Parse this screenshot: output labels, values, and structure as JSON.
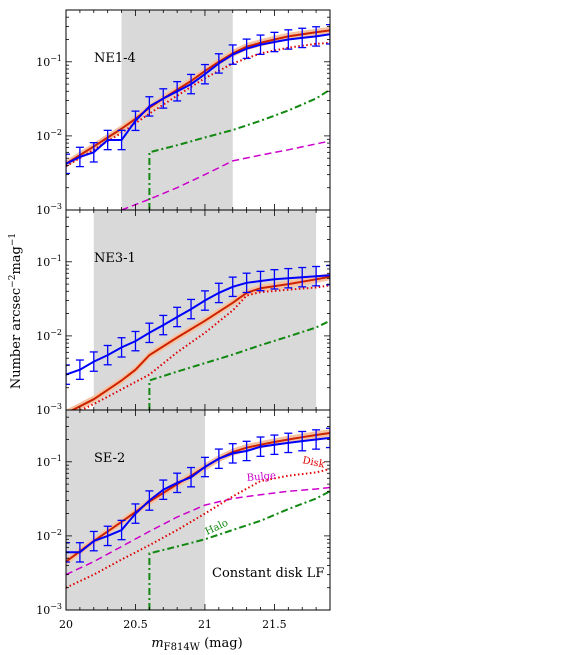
{
  "chart_data": {
    "type": "line",
    "xlabel": "m",
    "xlabel_sub": "F814W",
    "xlabel_unit": " (mag)",
    "ylabel": "Number arcsec",
    "ylabel_sup1": "−2",
    "ylabel_mid": "mag",
    "ylabel_sup2": "−1",
    "xlim": [
      20.0,
      21.9
    ],
    "ylim": [
      0.001,
      0.5
    ],
    "yscale": "log",
    "xticks": [
      {
        "v": 20,
        "label": "20"
      },
      {
        "v": 20.5,
        "label": "20.5"
      },
      {
        "v": 21,
        "label": "21"
      },
      {
        "v": 21.5,
        "label": "21.5"
      }
    ],
    "yticks": [
      {
        "v": 0.001,
        "b": "10",
        "e": "−3"
      },
      {
        "v": 0.01,
        "b": "10",
        "e": "−2"
      },
      {
        "v": 0.1,
        "b": "10",
        "e": "−1"
      }
    ],
    "colors": {
      "data": "#0000ff",
      "model": "#cc2200",
      "band": "#f6c3a2",
      "disk": "#e00000",
      "bulge": "#cc00cc",
      "halo": "#118811",
      "shade": "#d9d9d9"
    },
    "panels": [
      {
        "label": "NE1-4",
        "shade": [
          20.4,
          21.2
        ],
        "data": {
          "x": [
            20.0,
            20.1,
            20.2,
            20.3,
            20.4,
            20.5,
            20.6,
            20.7,
            20.8,
            20.9,
            21.0,
            21.1,
            21.2,
            21.3,
            21.4,
            21.5,
            21.6,
            21.7,
            21.8,
            21.9
          ],
          "y": [
            0.0042,
            0.0052,
            0.006,
            0.0088,
            0.0088,
            0.016,
            0.025,
            0.032,
            0.04,
            0.05,
            0.068,
            0.095,
            0.125,
            0.15,
            0.17,
            0.185,
            0.2,
            0.21,
            0.22,
            0.235
          ]
        },
        "model": {
          "x": [
            20.0,
            20.1,
            20.2,
            20.3,
            20.4,
            20.5,
            20.6,
            20.7,
            20.8,
            20.9,
            21.0,
            21.1,
            21.2,
            21.3,
            21.4,
            21.5,
            21.6,
            21.7,
            21.8,
            21.9
          ],
          "y": [
            0.0042,
            0.0055,
            0.0072,
            0.0095,
            0.0125,
            0.017,
            0.024,
            0.032,
            0.042,
            0.055,
            0.075,
            0.1,
            0.13,
            0.16,
            0.18,
            0.2,
            0.22,
            0.235,
            0.25,
            0.265
          ]
        },
        "disk": {
          "x": [
            20.0,
            20.2,
            20.4,
            20.6,
            20.8,
            21.0,
            21.2,
            21.4,
            21.6,
            21.8,
            21.9
          ],
          "y": [
            0.0039,
            0.0065,
            0.011,
            0.02,
            0.035,
            0.06,
            0.095,
            0.13,
            0.155,
            0.175,
            0.18
          ]
        },
        "bulge": {
          "x": [
            20.4,
            20.6,
            20.8,
            21.0,
            21.2,
            21.4,
            21.6,
            21.8,
            21.9
          ],
          "y": [
            0.001,
            0.0014,
            0.002,
            0.003,
            0.0046,
            0.0055,
            0.0065,
            0.0078,
            0.0085
          ]
        },
        "halo": {
          "x": [
            20.6,
            20.6,
            20.8,
            21.0,
            21.2,
            21.4,
            21.6,
            21.8,
            21.9
          ],
          "y": [
            0.001,
            0.006,
            0.0075,
            0.0095,
            0.012,
            0.016,
            0.022,
            0.032,
            0.042
          ]
        }
      },
      {
        "label": "NE3-1",
        "shade": [
          20.2,
          21.8
        ],
        "data": {
          "x": [
            20.0,
            20.1,
            20.2,
            20.3,
            20.4,
            20.5,
            20.6,
            20.7,
            20.8,
            20.9,
            21.0,
            21.1,
            21.2,
            21.3,
            21.4,
            21.5,
            21.6,
            21.7,
            21.8,
            21.9
          ],
          "y": [
            0.003,
            0.0035,
            0.0045,
            0.0055,
            0.007,
            0.0085,
            0.011,
            0.014,
            0.018,
            0.023,
            0.03,
            0.038,
            0.046,
            0.052,
            0.055,
            0.058,
            0.06,
            0.062,
            0.064,
            0.066
          ]
        },
        "model": {
          "x": [
            20.0,
            20.2,
            20.4,
            20.5,
            20.6,
            20.8,
            21.0,
            21.2,
            21.3,
            21.4,
            21.6,
            21.8,
            21.9
          ],
          "y": [
            0.0009,
            0.0014,
            0.0025,
            0.0035,
            0.0055,
            0.0095,
            0.016,
            0.028,
            0.038,
            0.044,
            0.05,
            0.058,
            0.063
          ]
        },
        "disk": {
          "x": [
            20.0,
            20.2,
            20.4,
            20.6,
            20.8,
            21.0,
            21.2,
            21.3,
            21.4,
            21.6,
            21.8,
            21.9
          ],
          "y": [
            0.0008,
            0.0012,
            0.0019,
            0.003,
            0.006,
            0.011,
            0.022,
            0.035,
            0.039,
            0.042,
            0.045,
            0.048
          ]
        },
        "bulge": null,
        "halo": {
          "x": [
            20.6,
            20.6,
            20.8,
            21.0,
            21.2,
            21.4,
            21.6,
            21.8,
            21.9
          ],
          "y": [
            0.001,
            0.0025,
            0.0033,
            0.0043,
            0.0056,
            0.0075,
            0.0098,
            0.013,
            0.016
          ]
        }
      },
      {
        "label": "SE-2",
        "shade": [
          20.0,
          21.0
        ],
        "note": "Constant disk LF",
        "curve_labels": {
          "disk": "Disk",
          "bulge": "Bulge",
          "halo": "Halo"
        },
        "data": {
          "x": [
            20.0,
            20.1,
            20.2,
            20.3,
            20.4,
            20.5,
            20.6,
            20.7,
            20.8,
            20.9,
            21.0,
            21.1,
            21.2,
            21.3,
            21.4,
            21.5,
            21.6,
            21.7,
            21.8,
            21.9
          ],
          "y": [
            0.006,
            0.006,
            0.0085,
            0.01,
            0.012,
            0.02,
            0.03,
            0.042,
            0.052,
            0.062,
            0.085,
            0.11,
            0.13,
            0.14,
            0.16,
            0.17,
            0.18,
            0.19,
            0.2,
            0.21
          ]
        },
        "model": {
          "x": [
            20.0,
            20.1,
            20.2,
            20.3,
            20.4,
            20.5,
            20.6,
            20.7,
            20.8,
            20.9,
            21.0,
            21.1,
            21.2,
            21.3,
            21.4,
            21.5,
            21.6,
            21.7,
            21.8,
            21.9
          ],
          "y": [
            0.0045,
            0.0062,
            0.0085,
            0.0115,
            0.0155,
            0.021,
            0.029,
            0.038,
            0.05,
            0.065,
            0.085,
            0.11,
            0.135,
            0.155,
            0.17,
            0.185,
            0.2,
            0.215,
            0.23,
            0.245
          ]
        },
        "disk": {
          "x": [
            20.0,
            20.2,
            20.4,
            20.6,
            20.8,
            21.0,
            21.2,
            21.4,
            21.6,
            21.8,
            21.9
          ],
          "y": [
            0.002,
            0.003,
            0.0048,
            0.0075,
            0.012,
            0.02,
            0.034,
            0.055,
            0.065,
            0.072,
            0.08
          ]
        },
        "bulge": {
          "x": [
            20.0,
            20.2,
            20.4,
            20.6,
            20.8,
            21.0,
            21.2,
            21.4,
            21.6,
            21.8,
            21.9
          ],
          "y": [
            0.003,
            0.0045,
            0.0072,
            0.0115,
            0.018,
            0.026,
            0.032,
            0.036,
            0.04,
            0.043,
            0.045
          ]
        },
        "halo": {
          "x": [
            20.6,
            20.6,
            20.8,
            21.0,
            21.2,
            21.4,
            21.6,
            21.8,
            21.9
          ],
          "y": [
            0.001,
            0.0058,
            0.0072,
            0.009,
            0.012,
            0.016,
            0.023,
            0.032,
            0.04
          ]
        }
      }
    ]
  }
}
